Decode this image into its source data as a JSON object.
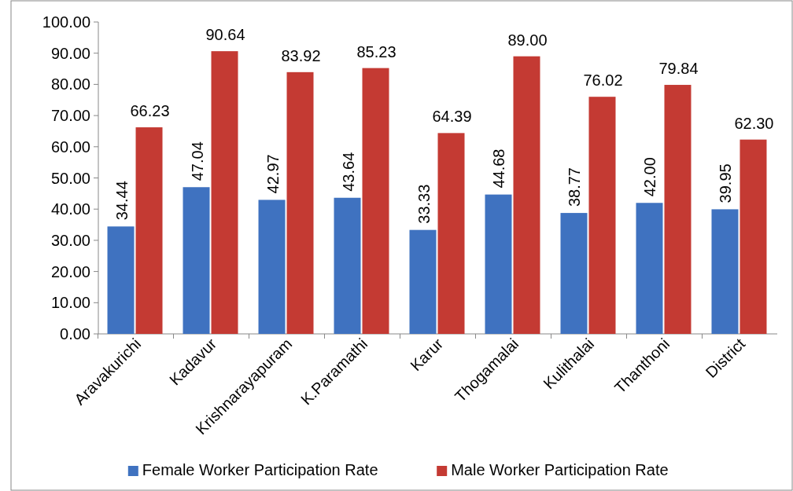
{
  "chart_data": {
    "type": "bar",
    "categories": [
      "Aravakurichi",
      "Kadavur",
      "Krishnarayapuram",
      "K.Paramathi",
      "Karur",
      "Thogamalai",
      "Kulithalai",
      "Thanthoni",
      "District"
    ],
    "series": [
      {
        "name": "Female Worker Participation Rate",
        "color": "#3f72c0",
        "values": [
          34.44,
          47.04,
          42.97,
          43.64,
          33.33,
          44.68,
          38.77,
          42.0,
          39.95
        ],
        "value_labels": [
          "34.44",
          "47.04",
          "42.97",
          "43.64",
          "33.33",
          "44.68",
          "38.77",
          "42.00",
          "39.95"
        ]
      },
      {
        "name": "Male Worker Participation Rate",
        "color": "#c43a33",
        "values": [
          66.23,
          90.64,
          83.92,
          85.23,
          64.39,
          89.0,
          76.02,
          79.84,
          62.3
        ],
        "value_labels": [
          "66.23",
          "90.64",
          "83.92",
          "85.23",
          "64.39",
          "89.00",
          "76.02",
          "79.84",
          "62.30"
        ]
      }
    ],
    "ylim": [
      0,
      100
    ],
    "yticks": [
      {
        "value": 0,
        "label": "0.00"
      },
      {
        "value": 10,
        "label": "10.00"
      },
      {
        "value": 20,
        "label": "20.00"
      },
      {
        "value": 30,
        "label": "30.00"
      },
      {
        "value": 40,
        "label": "40.00"
      },
      {
        "value": 50,
        "label": "50.00"
      },
      {
        "value": 60,
        "label": "60.00"
      },
      {
        "value": 70,
        "label": "70.00"
      },
      {
        "value": 80,
        "label": "80.00"
      },
      {
        "value": 90,
        "label": "90.00"
      },
      {
        "value": 100,
        "label": "100.00"
      }
    ],
    "grid": false,
    "legend": "bottom"
  }
}
